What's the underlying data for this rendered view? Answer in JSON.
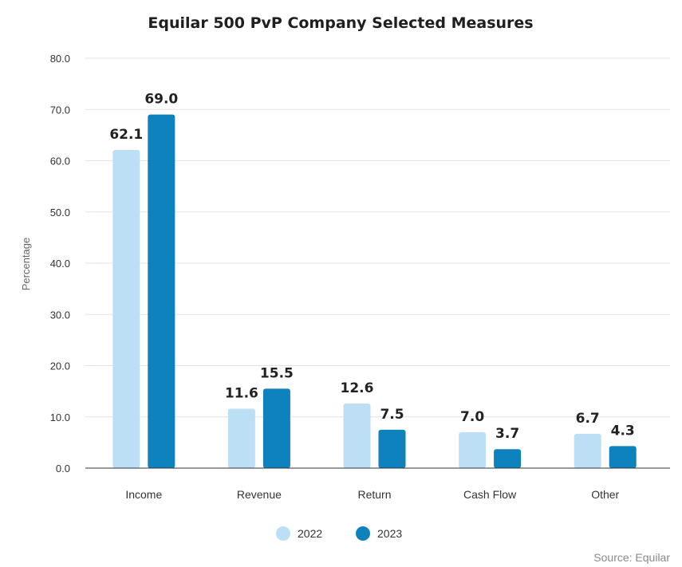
{
  "chart_data": {
    "type": "bar",
    "title": "Equilar 500 PvP Company Selected Measures",
    "ylabel": "Percentage",
    "xlabel": "",
    "ylim": [
      0,
      80
    ],
    "yticks": [
      "0.0",
      "10.0",
      "20.0",
      "30.0",
      "40.0",
      "50.0",
      "60.0",
      "70.0",
      "80.0"
    ],
    "grid": true,
    "legend_position": "bottom-center",
    "categories": [
      "Income",
      "Revenue",
      "Return",
      "Cash Flow",
      "Other"
    ],
    "series": [
      {
        "name": "2022",
        "color": "#bcdff5",
        "values": [
          62.1,
          11.6,
          12.6,
          7.0,
          6.7
        ],
        "labels": [
          "62.1",
          "11.6",
          "12.6",
          "7.0",
          "6.7"
        ]
      },
      {
        "name": "2023",
        "color": "#0e82bd",
        "values": [
          69.0,
          15.5,
          7.5,
          3.7,
          4.3
        ],
        "labels": [
          "69.0",
          "15.5",
          "7.5",
          "3.7",
          "4.3"
        ]
      }
    ],
    "source": "Source: Equilar"
  }
}
